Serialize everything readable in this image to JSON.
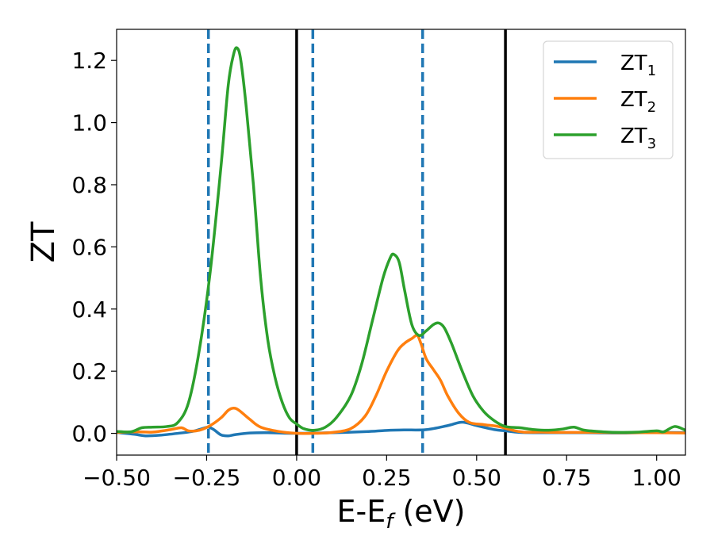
{
  "chart_data": {
    "type": "line",
    "xlabel": {
      "base": "E-E",
      "sub": "f",
      "unit": " (eV)"
    },
    "ylabel": "ZT",
    "xlim": [
      -0.5,
      1.08
    ],
    "ylim": [
      -0.07,
      1.3
    ],
    "xticks": [
      -0.5,
      -0.25,
      0.0,
      0.25,
      0.5,
      0.75,
      1.0
    ],
    "xtick_labels": [
      "−0.50",
      "−0.25",
      "0.00",
      "0.25",
      "0.50",
      "0.75",
      "1.00"
    ],
    "yticks": [
      0.0,
      0.2,
      0.4,
      0.6,
      0.8,
      1.0,
      1.2
    ],
    "ytick_labels": [
      "0.0",
      "0.2",
      "0.4",
      "0.6",
      "0.8",
      "1.0",
      "1.2"
    ],
    "grid": false,
    "legend_position": "top-right",
    "vlines": [
      {
        "x": -0.245,
        "style": "dashed",
        "color": "#1f77b4"
      },
      {
        "x": 0.0,
        "style": "solid",
        "color": "#000000"
      },
      {
        "x": 0.045,
        "style": "dashed",
        "color": "#1f77b4"
      },
      {
        "x": 0.35,
        "style": "dashed",
        "color": "#1f77b4"
      },
      {
        "x": 0.58,
        "style": "solid",
        "color": "#000000"
      }
    ],
    "series": [
      {
        "name_base": "ZT",
        "name_sub": "1",
        "color": "#1f77b4",
        "points": [
          [
            -0.5,
            0.003
          ],
          [
            -0.45,
            -0.003
          ],
          [
            -0.42,
            -0.008
          ],
          [
            -0.38,
            -0.006
          ],
          [
            -0.33,
            0.0
          ],
          [
            -0.29,
            0.006
          ],
          [
            -0.26,
            0.016
          ],
          [
            -0.245,
            0.02
          ],
          [
            -0.23,
            0.012
          ],
          [
            -0.21,
            -0.005
          ],
          [
            -0.19,
            -0.008
          ],
          [
            -0.17,
            -0.004
          ],
          [
            -0.13,
            0.001
          ],
          [
            -0.08,
            0.002
          ],
          [
            0.0,
            0.0
          ],
          [
            0.1,
            0.002
          ],
          [
            0.2,
            0.006
          ],
          [
            0.26,
            0.01
          ],
          [
            0.3,
            0.011
          ],
          [
            0.36,
            0.012
          ],
          [
            0.42,
            0.025
          ],
          [
            0.46,
            0.036
          ],
          [
            0.5,
            0.025
          ],
          [
            0.55,
            0.012
          ],
          [
            0.58,
            0.008
          ],
          [
            0.62,
            0.003
          ],
          [
            0.7,
            0.002
          ],
          [
            0.8,
            0.002
          ],
          [
            0.9,
            0.001
          ],
          [
            1.0,
            0.003
          ],
          [
            1.08,
            0.002
          ]
        ]
      },
      {
        "name_base": "ZT",
        "name_sub": "2",
        "color": "#ff7f0e",
        "points": [
          [
            -0.5,
            0.003
          ],
          [
            -0.44,
            0.005
          ],
          [
            -0.4,
            0.004
          ],
          [
            -0.35,
            0.012
          ],
          [
            -0.32,
            0.018
          ],
          [
            -0.3,
            0.008
          ],
          [
            -0.27,
            0.01
          ],
          [
            -0.24,
            0.025
          ],
          [
            -0.21,
            0.05
          ],
          [
            -0.19,
            0.074
          ],
          [
            -0.175,
            0.081
          ],
          [
            -0.16,
            0.074
          ],
          [
            -0.13,
            0.045
          ],
          [
            -0.1,
            0.02
          ],
          [
            -0.05,
            0.006
          ],
          [
            0.0,
            0.0
          ],
          [
            0.05,
            0.0
          ],
          [
            0.1,
            0.003
          ],
          [
            0.15,
            0.015
          ],
          [
            0.19,
            0.055
          ],
          [
            0.22,
            0.12
          ],
          [
            0.25,
            0.2
          ],
          [
            0.28,
            0.265
          ],
          [
            0.3,
            0.29
          ],
          [
            0.32,
            0.305
          ],
          [
            0.335,
            0.315
          ],
          [
            0.345,
            0.29
          ],
          [
            0.36,
            0.24
          ],
          [
            0.38,
            0.205
          ],
          [
            0.4,
            0.17
          ],
          [
            0.42,
            0.12
          ],
          [
            0.45,
            0.065
          ],
          [
            0.48,
            0.035
          ],
          [
            0.52,
            0.028
          ],
          [
            0.56,
            0.022
          ],
          [
            0.6,
            0.01
          ],
          [
            0.63,
            0.004
          ],
          [
            0.68,
            0.004
          ],
          [
            0.73,
            0.003
          ],
          [
            0.78,
            0.003
          ],
          [
            0.83,
            0.003
          ],
          [
            0.9,
            0.002
          ],
          [
            1.0,
            0.002
          ],
          [
            1.08,
            0.001
          ]
        ]
      },
      {
        "name_base": "ZT",
        "name_sub": "3",
        "color": "#2ca02c",
        "points": [
          [
            -0.5,
            0.006
          ],
          [
            -0.46,
            0.005
          ],
          [
            -0.43,
            0.018
          ],
          [
            -0.4,
            0.02
          ],
          [
            -0.36,
            0.022
          ],
          [
            -0.33,
            0.035
          ],
          [
            -0.3,
            0.1
          ],
          [
            -0.27,
            0.27
          ],
          [
            -0.24,
            0.52
          ],
          [
            -0.21,
            0.86
          ],
          [
            -0.19,
            1.12
          ],
          [
            -0.175,
            1.22
          ],
          [
            -0.165,
            1.24
          ],
          [
            -0.155,
            1.2
          ],
          [
            -0.14,
            1.05
          ],
          [
            -0.12,
            0.8
          ],
          [
            -0.1,
            0.5
          ],
          [
            -0.08,
            0.3
          ],
          [
            -0.06,
            0.18
          ],
          [
            -0.04,
            0.1
          ],
          [
            -0.02,
            0.05
          ],
          [
            0.0,
            0.03
          ],
          [
            0.02,
            0.015
          ],
          [
            0.05,
            0.01
          ],
          [
            0.08,
            0.02
          ],
          [
            0.11,
            0.05
          ],
          [
            0.15,
            0.12
          ],
          [
            0.18,
            0.22
          ],
          [
            0.21,
            0.36
          ],
          [
            0.24,
            0.5
          ],
          [
            0.26,
            0.565
          ],
          [
            0.27,
            0.576
          ],
          [
            0.285,
            0.55
          ],
          [
            0.3,
            0.46
          ],
          [
            0.32,
            0.35
          ],
          [
            0.34,
            0.315
          ],
          [
            0.36,
            0.33
          ],
          [
            0.38,
            0.35
          ],
          [
            0.395,
            0.355
          ],
          [
            0.41,
            0.34
          ],
          [
            0.43,
            0.29
          ],
          [
            0.46,
            0.2
          ],
          [
            0.49,
            0.12
          ],
          [
            0.52,
            0.07
          ],
          [
            0.55,
            0.04
          ],
          [
            0.58,
            0.022
          ],
          [
            0.62,
            0.018
          ],
          [
            0.66,
            0.012
          ],
          [
            0.7,
            0.01
          ],
          [
            0.74,
            0.014
          ],
          [
            0.77,
            0.02
          ],
          [
            0.8,
            0.01
          ],
          [
            0.85,
            0.005
          ],
          [
            0.9,
            0.003
          ],
          [
            0.95,
            0.004
          ],
          [
            1.0,
            0.008
          ],
          [
            1.02,
            0.005
          ],
          [
            1.05,
            0.022
          ],
          [
            1.08,
            0.01
          ]
        ]
      }
    ]
  }
}
